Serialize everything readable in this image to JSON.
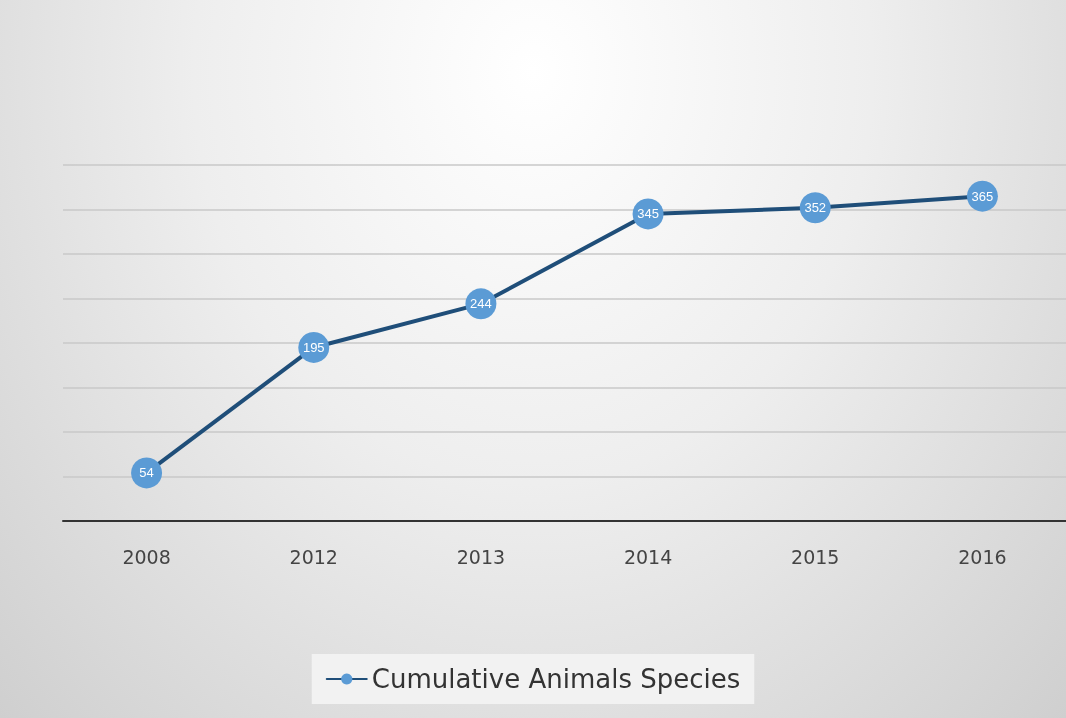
{
  "chart_data": {
    "type": "line",
    "categories": [
      "2008",
      "2012",
      "2013",
      "2014",
      "2015",
      "2016"
    ],
    "series": [
      {
        "name": "Cumulative Animals Species",
        "color": "#1f4e79",
        "colors": [
          "#5b9bd5",
          "#5b9bd5",
          "#5b9bd5",
          "#5b9bd5",
          "#5b9bd5",
          "#5b9bd5"
        ],
        "values": [
          54,
          195,
          244,
          345,
          352,
          365
        ]
      }
    ],
    "ylim": [
      0,
      400
    ],
    "yticks": [
      {
        "value": 0,
        "label": null
      },
      {
        "value": 50,
        "label": null
      },
      {
        "value": 100,
        "label": null
      },
      {
        "value": 150,
        "label": null
      },
      {
        "value": 200,
        "label": null
      },
      {
        "value": 250,
        "label": null
      },
      {
        "value": 300,
        "label": null
      },
      {
        "value": 350,
        "label": null
      },
      {
        "value": 400,
        "label": null
      }
    ],
    "tick_labels": "x",
    "grid": "y",
    "legend": "bottom",
    "marker": "circle",
    "line_style": "solid",
    "data_labels": true
  }
}
